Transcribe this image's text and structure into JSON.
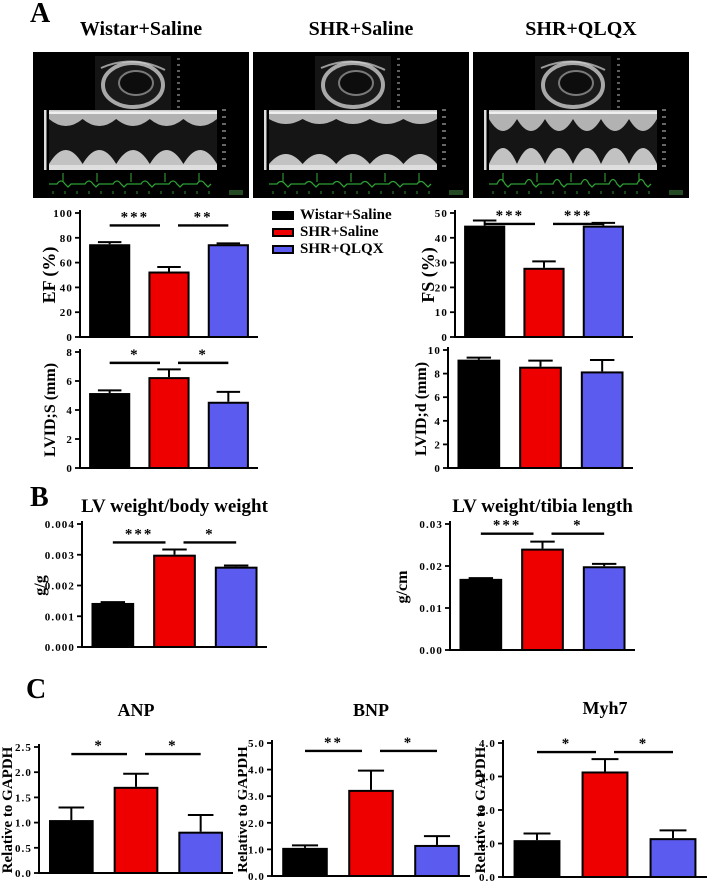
{
  "panels": {
    "A": {
      "label": "A",
      "echo_titles": [
        "Wistar+Saline",
        "SHR+Saline",
        "SHR+QLQX"
      ]
    },
    "B": {
      "label": "B"
    },
    "C": {
      "label": "C"
    }
  },
  "legend": {
    "position": "right of EF chart",
    "items": [
      {
        "label": "Wistar+Saline",
        "color": "#000000"
      },
      {
        "label": "SHR+Saline",
        "color": "#EE0000"
      },
      {
        "label": "SHR+QLQX",
        "color": "#5B5BF0"
      }
    ]
  },
  "groups": [
    "Wistar+Saline",
    "SHR+Saline",
    "SHR+QLQX"
  ],
  "group_colors": [
    "#000000",
    "#EE0000",
    "#5B5BF0"
  ],
  "chart_data": [
    {
      "id": "ef",
      "type": "bar",
      "panel": "A",
      "title": "",
      "ylabel": "EF (%)",
      "ylim": [
        0,
        100
      ],
      "yticks": [
        "0",
        "20",
        "40",
        "60",
        "80",
        "100"
      ],
      "categories": [
        "Wistar+Saline",
        "SHR+Saline",
        "SHR+QLQX"
      ],
      "values": [
        74,
        52,
        74
      ],
      "errors": [
        2.5,
        4.5,
        1.5
      ],
      "significance": [
        {
          "from": 0,
          "to": 1,
          "label": "***"
        },
        {
          "from": 1,
          "to": 2,
          "label": "**"
        }
      ],
      "sig_y": 90
    },
    {
      "id": "fs",
      "type": "bar",
      "panel": "A",
      "title": "",
      "ylabel": "FS (%)",
      "ylim": [
        0,
        50
      ],
      "yticks": [
        "0",
        "10",
        "20",
        "30",
        "40",
        "50"
      ],
      "categories": [
        "Wistar+Saline",
        "SHR+Saline",
        "SHR+QLQX"
      ],
      "values": [
        44.5,
        27.5,
        44.5
      ],
      "errors": [
        2.5,
        3,
        1.5
      ],
      "significance": [
        {
          "from": 0,
          "to": 1,
          "label": "***"
        },
        {
          "from": 1,
          "to": 2,
          "label": "***"
        }
      ],
      "sig_y": 45.6
    },
    {
      "id": "lvids",
      "type": "bar",
      "panel": "A",
      "title": "",
      "ylabel": "LVID;S (mm)",
      "ylim": [
        0,
        8
      ],
      "yticks": [
        "0",
        "2",
        "4",
        "6",
        "8"
      ],
      "categories": [
        "Wistar+Saline",
        "SHR+Saline",
        "SHR+QLQX"
      ],
      "values": [
        5.1,
        6.2,
        4.5
      ],
      "errors": [
        0.25,
        0.6,
        0.75
      ],
      "significance": [
        {
          "from": 0,
          "to": 1,
          "label": "*"
        },
        {
          "from": 1,
          "to": 2,
          "label": "*"
        }
      ],
      "sig_y": 7.25
    },
    {
      "id": "lvidd",
      "type": "bar",
      "panel": "A",
      "title": "",
      "ylabel": "LVID;d (mm)",
      "ylim": [
        0,
        10
      ],
      "yticks": [
        "0",
        "2",
        "4",
        "6",
        "8",
        "10"
      ],
      "categories": [
        "Wistar+Saline",
        "SHR+Saline",
        "SHR+QLQX"
      ],
      "values": [
        9.1,
        8.5,
        8.1
      ],
      "errors": [
        0.25,
        0.6,
        1.05
      ],
      "significance": [],
      "sig_y": null
    },
    {
      "id": "lv_bw",
      "type": "bar",
      "panel": "B",
      "title": "LV weight/body weight",
      "ylabel": "g/g",
      "ylim": [
        0,
        0.004
      ],
      "yticks": [
        "0.000",
        "0.001",
        "0.002",
        "0.003",
        "0.004"
      ],
      "categories": [
        "Wistar+Saline",
        "SHR+Saline",
        "SHR+QLQX"
      ],
      "values": [
        0.0014,
        0.00297,
        0.00258
      ],
      "errors": [
        6e-05,
        0.0002,
        7e-05
      ],
      "significance": [
        {
          "from": 0,
          "to": 1,
          "label": "***"
        },
        {
          "from": 1,
          "to": 2,
          "label": "*"
        }
      ],
      "sig_y": 0.0034
    },
    {
      "id": "lv_tibia",
      "type": "bar",
      "panel": "B",
      "title": "LV weight/tibia length",
      "ylabel": "g/cm",
      "ylim": [
        0,
        0.03
      ],
      "yticks": [
        "0.00",
        "0.01",
        "0.02",
        "0.03"
      ],
      "categories": [
        "Wistar+Saline",
        "SHR+Saline",
        "SHR+QLQX"
      ],
      "values": [
        0.0167,
        0.0239,
        0.0197
      ],
      "errors": [
        0.0004,
        0.0019,
        0.0008
      ],
      "significance": [
        {
          "from": 0,
          "to": 1,
          "label": "***"
        },
        {
          "from": 1,
          "to": 2,
          "label": "*"
        }
      ],
      "sig_y": 0.0277
    },
    {
      "id": "anp",
      "type": "bar",
      "panel": "C",
      "title": "ANP",
      "ylabel": "Relative to GAPDH",
      "ylim": [
        0,
        2.5
      ],
      "yticks": [
        "0.0",
        "0.5",
        "1.0",
        "1.5",
        "2.0",
        "2.5"
      ],
      "categories": [
        "Wistar+Saline",
        "SHR+Saline",
        "SHR+QLQX"
      ],
      "values": [
        1.03,
        1.69,
        0.8
      ],
      "errors": [
        0.27,
        0.28,
        0.35
      ],
      "significance": [
        {
          "from": 0,
          "to": 1,
          "label": "*"
        },
        {
          "from": 1,
          "to": 2,
          "label": "*"
        }
      ],
      "sig_y": 2.36
    },
    {
      "id": "bnp",
      "type": "bar",
      "panel": "C",
      "title": "BNP",
      "ylabel": "Relative to GAPDH",
      "ylim": [
        0,
        5
      ],
      "yticks": [
        "0.0",
        "1.0",
        "2.0",
        "3.0",
        "4.0",
        "5.0"
      ],
      "categories": [
        "Wistar+Saline",
        "SHR+Saline",
        "SHR+QLQX"
      ],
      "values": [
        1.02,
        3.2,
        1.13
      ],
      "errors": [
        0.13,
        0.76,
        0.37
      ],
      "significance": [
        {
          "from": 0,
          "to": 1,
          "label": "**"
        },
        {
          "from": 1,
          "to": 2,
          "label": "*"
        }
      ],
      "sig_y": 4.7
    },
    {
      "id": "myh7",
      "type": "bar",
      "panel": "C",
      "title": "Myh7",
      "ylabel": "Relative to GAPDH",
      "ylim": [
        0,
        4
      ],
      "yticks": [
        "0.0",
        "1.0",
        "2.0",
        "3.0",
        "4.0"
      ],
      "categories": [
        "Wistar+Saline",
        "SHR+Saline",
        "SHR+QLQX"
      ],
      "values": [
        1.07,
        3.12,
        1.13
      ],
      "errors": [
        0.23,
        0.4,
        0.26
      ],
      "significance": [
        {
          "from": 0,
          "to": 1,
          "label": "*"
        },
        {
          "from": 1,
          "to": 2,
          "label": "*"
        }
      ],
      "sig_y": 3.73
    }
  ]
}
